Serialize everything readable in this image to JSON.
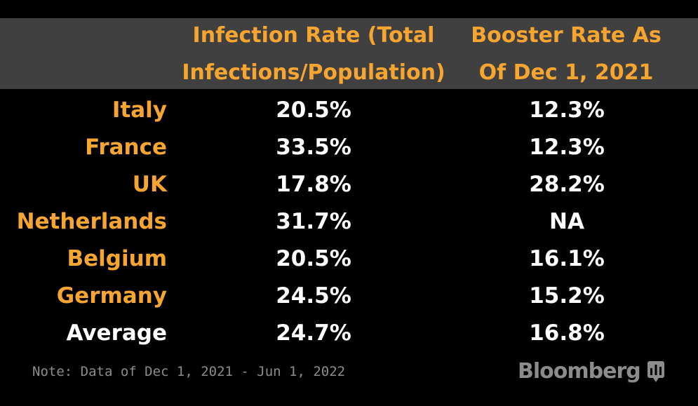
{
  "chart_data": {
    "type": "table",
    "columns": [
      "",
      "Infection Rate (Total Infections/Population)",
      "Booster Rate As Of Dec 1, 2021"
    ],
    "header_lines": {
      "col1": [
        "Infection Rate (Total",
        "Infections/Population)"
      ],
      "col2": [
        "Booster Rate As",
        "Of Dec 1, 2021"
      ]
    },
    "rows": [
      {
        "label": "Italy",
        "infection": "20.5%",
        "booster": "12.3%"
      },
      {
        "label": "France",
        "infection": "33.5%",
        "booster": "12.3%"
      },
      {
        "label": "UK",
        "infection": "17.8%",
        "booster": "28.2%"
      },
      {
        "label": "Netherlands",
        "infection": "31.7%",
        "booster": "NA"
      },
      {
        "label": "Belgium",
        "infection": "20.5%",
        "booster": "16.1%"
      },
      {
        "label": "Germany",
        "infection": "24.5%",
        "booster": "15.2%"
      },
      {
        "label": "Average",
        "infection": "24.7%",
        "booster": "16.8%"
      }
    ],
    "note": "Note: Data of Dec 1, 2021 - Jun 1, 2022"
  },
  "source_logo": "Bloomberg",
  "colors": {
    "background": "#000000",
    "header_background": "#404040",
    "accent": "#F7A531",
    "value_text": "#FFFFFF",
    "muted": "#8C8C8C"
  },
  "icons": {
    "logo_icon": "bloomberg-chart-icon"
  }
}
